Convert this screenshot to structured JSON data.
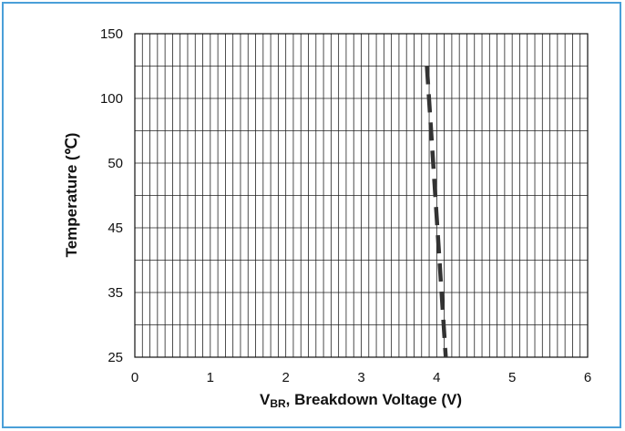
{
  "chart_data": {
    "type": "line",
    "title": "",
    "xlabel": {
      "main": "V",
      "sub": "BR",
      "rest": ", Breakdown Voltage (V)"
    },
    "ylabel": "Temperature (℃)",
    "xlim": [
      0,
      6
    ],
    "x_ticks": [
      "0",
      "1",
      "2",
      "3",
      "4",
      "5",
      "6"
    ],
    "y_ticks": [
      "25",
      "35",
      "45",
      "50",
      "100",
      "150"
    ],
    "grid": true,
    "series": [
      {
        "style": "dashed",
        "color": "#333333",
        "points": [
          {
            "x": 3.87,
            "y": "125"
          },
          {
            "x": 4.12,
            "y": "25"
          }
        ]
      }
    ]
  },
  "colors": {
    "frame": "#4a9fd8",
    "grid": "#222222",
    "series": "#333333"
  }
}
